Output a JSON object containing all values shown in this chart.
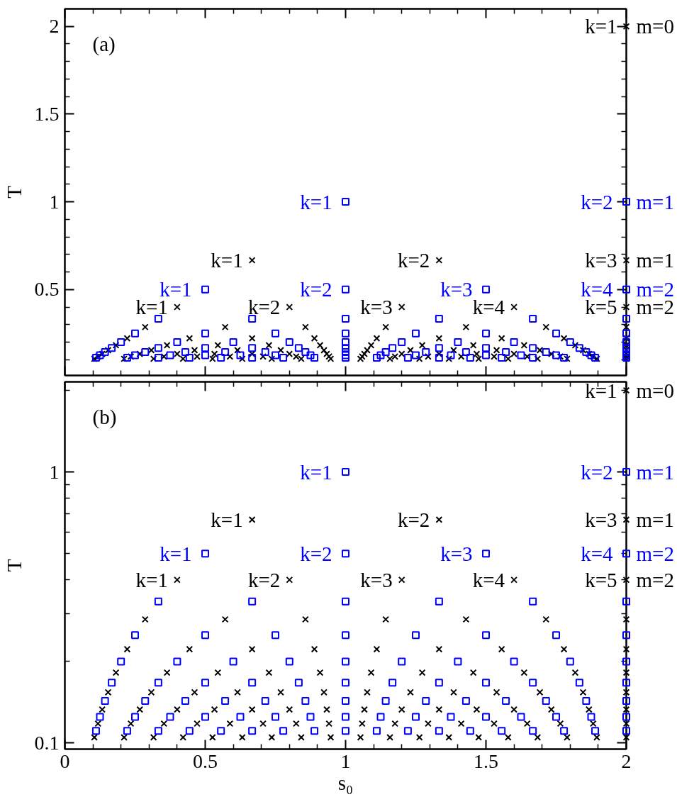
{
  "chart_data": [
    {
      "type": "scatter",
      "title": "(a)",
      "ylabel": "T",
      "xlim": [
        0,
        2
      ],
      "ylim": [
        0.01,
        2.1
      ],
      "tick_labels": "y",
      "xticks": [
        0,
        {
          "value": 0.1,
          "label": null
        },
        {
          "value": 0.2,
          "label": null
        },
        {
          "value": 0.3,
          "label": null
        },
        {
          "value": 0.4,
          "label": null
        },
        0.5,
        {
          "value": 0.6,
          "label": null
        },
        {
          "value": 0.7,
          "label": null
        },
        {
          "value": 0.8,
          "label": null
        },
        {
          "value": 0.9,
          "label": null
        },
        1,
        {
          "value": 1.1,
          "label": null
        },
        {
          "value": 1.2,
          "label": null
        },
        {
          "value": 1.3,
          "label": null
        },
        {
          "value": 1.4,
          "label": null
        },
        1.5,
        {
          "value": 1.6,
          "label": null
        },
        {
          "value": 1.7,
          "label": null
        },
        {
          "value": 1.8,
          "label": null
        },
        {
          "value": 1.9,
          "label": null
        },
        2
      ],
      "yticks": [
        {
          "value": 0.1,
          "label": null
        },
        {
          "value": 0.2,
          "label": null
        },
        {
          "value": 0.3,
          "label": null
        },
        {
          "value": 0.4,
          "label": null
        },
        0.5,
        {
          "value": 0.6,
          "label": null
        },
        {
          "value": 0.7,
          "label": null
        },
        {
          "value": 0.8,
          "label": null
        },
        {
          "value": 0.9,
          "label": null
        },
        1,
        {
          "value": 1.1,
          "label": null
        },
        {
          "value": 1.2,
          "label": null
        },
        {
          "value": 1.3,
          "label": null
        },
        {
          "value": 1.4,
          "label": null
        },
        1.5,
        {
          "value": 1.6,
          "label": null
        },
        {
          "value": 1.7,
          "label": null
        },
        {
          "value": 1.8,
          "label": null
        },
        {
          "value": 1.9,
          "label": null
        },
        2
      ],
      "series": [
        {
          "color": "#000000",
          "marker": "cross",
          "x": [
            2,
            0.667,
            1.333,
            2,
            0.4,
            0.8,
            1.2,
            1.6,
            2,
            0.286,
            0.571,
            0.857,
            1.143,
            1.429,
            1.714,
            2,
            0.222,
            0.444,
            0.667,
            0.889,
            1.111,
            1.333,
            1.556,
            1.778,
            2,
            0.182,
            0.364,
            0.545,
            0.727,
            0.909,
            1.091,
            1.273,
            1.455,
            1.636,
            1.818,
            2,
            0.154,
            0.308,
            0.462,
            0.615,
            0.769,
            0.923,
            1.077,
            1.231,
            1.385,
            1.538,
            1.692,
            1.846,
            2,
            0.133,
            0.267,
            0.4,
            0.533,
            0.667,
            0.8,
            0.933,
            1.067,
            1.2,
            1.333,
            1.467,
            1.6,
            1.733,
            1.867,
            2,
            0.118,
            0.235,
            0.353,
            0.471,
            0.588,
            0.706,
            0.824,
            0.941,
            1.059,
            1.176,
            1.294,
            1.412,
            1.529,
            1.647,
            1.765,
            1.882,
            2,
            0.105,
            0.211,
            0.316,
            0.421,
            0.526,
            0.632,
            0.737,
            0.842,
            0.947,
            1.053,
            1.158,
            1.263,
            1.368,
            1.474,
            1.579,
            1.684,
            1.789,
            1.895,
            2
          ],
          "values": [
            2,
            0.667,
            0.667,
            0.667,
            0.4,
            0.4,
            0.4,
            0.4,
            0.4,
            0.286,
            0.286,
            0.286,
            0.286,
            0.286,
            0.286,
            0.286,
            0.222,
            0.222,
            0.222,
            0.222,
            0.222,
            0.222,
            0.222,
            0.222,
            0.222,
            0.182,
            0.182,
            0.182,
            0.182,
            0.182,
            0.182,
            0.182,
            0.182,
            0.182,
            0.182,
            0.182,
            0.154,
            0.154,
            0.154,
            0.154,
            0.154,
            0.154,
            0.154,
            0.154,
            0.154,
            0.154,
            0.154,
            0.154,
            0.154,
            0.133,
            0.133,
            0.133,
            0.133,
            0.133,
            0.133,
            0.133,
            0.133,
            0.133,
            0.133,
            0.133,
            0.133,
            0.133,
            0.133,
            0.133,
            0.118,
            0.118,
            0.118,
            0.118,
            0.118,
            0.118,
            0.118,
            0.118,
            0.118,
            0.118,
            0.118,
            0.118,
            0.118,
            0.118,
            0.118,
            0.118,
            0.118,
            0.105,
            0.105,
            0.105,
            0.105,
            0.105,
            0.105,
            0.105,
            0.105,
            0.105,
            0.105,
            0.105,
            0.105,
            0.105,
            0.105,
            0.105,
            0.105,
            0.105,
            0.105,
            0.105
          ]
        },
        {
          "color": "#0000ff",
          "marker": "square",
          "x": [
            1,
            2,
            0.5,
            1,
            1.5,
            2,
            0.333,
            0.667,
            1,
            1.333,
            1.667,
            2,
            0.25,
            0.5,
            0.75,
            1,
            1.25,
            1.5,
            1.75,
            2,
            0.2,
            0.4,
            0.6,
            0.8,
            1,
            1.2,
            1.4,
            1.6,
            1.8,
            2,
            0.167,
            0.333,
            0.5,
            0.667,
            0.833,
            1,
            1.167,
            1.333,
            1.5,
            1.667,
            1.833,
            2,
            0.143,
            0.286,
            0.429,
            0.571,
            0.714,
            0.857,
            1,
            1.143,
            1.286,
            1.429,
            1.571,
            1.714,
            1.857,
            2,
            0.125,
            0.25,
            0.375,
            0.5,
            0.625,
            0.75,
            0.875,
            1,
            1.125,
            1.25,
            1.375,
            1.5,
            1.625,
            1.75,
            1.875,
            2,
            0.111,
            0.222,
            0.333,
            0.444,
            0.556,
            0.667,
            0.778,
            0.889,
            1,
            1.111,
            1.222,
            1.333,
            1.444,
            1.556,
            1.667,
            1.778,
            1.889,
            2
          ],
          "values": [
            1,
            1,
            0.5,
            0.5,
            0.5,
            0.5,
            0.333,
            0.333,
            0.333,
            0.333,
            0.333,
            0.333,
            0.25,
            0.25,
            0.25,
            0.25,
            0.25,
            0.25,
            0.25,
            0.25,
            0.2,
            0.2,
            0.2,
            0.2,
            0.2,
            0.2,
            0.2,
            0.2,
            0.2,
            0.2,
            0.167,
            0.167,
            0.167,
            0.167,
            0.167,
            0.167,
            0.167,
            0.167,
            0.167,
            0.167,
            0.167,
            0.167,
            0.143,
            0.143,
            0.143,
            0.143,
            0.143,
            0.143,
            0.143,
            0.143,
            0.143,
            0.143,
            0.143,
            0.143,
            0.143,
            0.143,
            0.125,
            0.125,
            0.125,
            0.125,
            0.125,
            0.125,
            0.125,
            0.125,
            0.125,
            0.125,
            0.125,
            0.125,
            0.125,
            0.125,
            0.125,
            0.125,
            0.111,
            0.111,
            0.111,
            0.111,
            0.111,
            0.111,
            0.111,
            0.111,
            0.111,
            0.111,
            0.111,
            0.111,
            0.111,
            0.111,
            0.111,
            0.111,
            0.111,
            0.111
          ]
        }
      ],
      "annotations": [
        {
          "text": "k=1",
          "x": 2,
          "y": 2
        },
        {
          "text": "m=0",
          "x": 2,
          "y": 2
        },
        {
          "text": "k=1",
          "x": 1,
          "y": 1
        },
        {
          "text": "k=2",
          "x": 2,
          "y": 1
        },
        {
          "text": "m=1",
          "x": 2,
          "y": 1
        },
        {
          "text": "k=1",
          "x": 0.667,
          "y": 0.667
        },
        {
          "text": "k=2",
          "x": 1.333,
          "y": 0.667
        },
        {
          "text": "k=3",
          "x": 2,
          "y": 0.667
        },
        {
          "text": "m=1",
          "x": 2,
          "y": 0.667
        },
        {
          "text": "k=1",
          "x": 0.5,
          "y": 0.5
        },
        {
          "text": "k=2",
          "x": 1,
          "y": 0.5
        },
        {
          "text": "k=3",
          "x": 1.5,
          "y": 0.5
        },
        {
          "text": "k=4",
          "x": 2,
          "y": 0.5
        },
        {
          "text": "m=2",
          "x": 2,
          "y": 0.5
        },
        {
          "text": "k=1",
          "x": 0.4,
          "y": 0.4
        },
        {
          "text": "k=2",
          "x": 0.8,
          "y": 0.4
        },
        {
          "text": "k=3",
          "x": 1.2,
          "y": 0.4
        },
        {
          "text": "k=4",
          "x": 1.6,
          "y": 0.4
        },
        {
          "text": "k=5",
          "x": 2,
          "y": 0.4
        },
        {
          "text": "m=2",
          "x": 2,
          "y": 0.4
        }
      ]
    },
    {
      "type": "scatter",
      "title": "(b)",
      "xlabel": "s₀",
      "ylabel": "T",
      "log": true,
      "xlim": [
        0,
        2
      ],
      "ylim": [
        0.095,
        2.15
      ],
      "xticks": [
        0,
        {
          "value": 0.1,
          "label": null
        },
        {
          "value": 0.2,
          "label": null
        },
        {
          "value": 0.3,
          "label": null
        },
        {
          "value": 0.4,
          "label": null
        },
        0.5,
        {
          "value": 0.6,
          "label": null
        },
        {
          "value": 0.7,
          "label": null
        },
        {
          "value": 0.8,
          "label": null
        },
        {
          "value": 0.9,
          "label": null
        },
        1,
        {
          "value": 1.1,
          "label": null
        },
        {
          "value": 1.2,
          "label": null
        },
        {
          "value": 1.3,
          "label": null
        },
        {
          "value": 1.4,
          "label": null
        },
        1.5,
        {
          "value": 1.6,
          "label": null
        },
        {
          "value": 1.7,
          "label": null
        },
        {
          "value": 1.8,
          "label": null
        },
        {
          "value": 1.9,
          "label": null
        },
        2
      ],
      "yticks": [
        0.1,
        {
          "value": 0.2,
          "label": null
        },
        {
          "value": 0.3,
          "label": null
        },
        {
          "value": 0.4,
          "label": null
        },
        {
          "value": 0.5,
          "label": null
        },
        {
          "value": 0.6,
          "label": null
        },
        {
          "value": 0.7,
          "label": null
        },
        {
          "value": 0.8,
          "label": null
        },
        {
          "value": 0.9,
          "label": null
        },
        1,
        {
          "value": 2,
          "label": null
        }
      ],
      "series": [
        {
          "color": "#000000",
          "marker": "cross",
          "x": [
            2,
            0.667,
            1.333,
            2,
            0.4,
            0.8,
            1.2,
            1.6,
            2,
            0.286,
            0.571,
            0.857,
            1.143,
            1.429,
            1.714,
            2,
            0.222,
            0.444,
            0.667,
            0.889,
            1.111,
            1.333,
            1.556,
            1.778,
            2,
            0.182,
            0.364,
            0.545,
            0.727,
            0.909,
            1.091,
            1.273,
            1.455,
            1.636,
            1.818,
            2,
            0.154,
            0.308,
            0.462,
            0.615,
            0.769,
            0.923,
            1.077,
            1.231,
            1.385,
            1.538,
            1.692,
            1.846,
            2,
            0.133,
            0.267,
            0.4,
            0.533,
            0.667,
            0.8,
            0.933,
            1.067,
            1.2,
            1.333,
            1.467,
            1.6,
            1.733,
            1.867,
            2,
            0.118,
            0.235,
            0.353,
            0.471,
            0.588,
            0.706,
            0.824,
            0.941,
            1.059,
            1.176,
            1.294,
            1.412,
            1.529,
            1.647,
            1.765,
            1.882,
            2,
            0.105,
            0.211,
            0.316,
            0.421,
            0.526,
            0.632,
            0.737,
            0.842,
            0.947,
            1.053,
            1.158,
            1.263,
            1.368,
            1.474,
            1.579,
            1.684,
            1.789,
            1.895,
            2
          ],
          "values": [
            2,
            0.667,
            0.667,
            0.667,
            0.4,
            0.4,
            0.4,
            0.4,
            0.4,
            0.286,
            0.286,
            0.286,
            0.286,
            0.286,
            0.286,
            0.286,
            0.222,
            0.222,
            0.222,
            0.222,
            0.222,
            0.222,
            0.222,
            0.222,
            0.222,
            0.182,
            0.182,
            0.182,
            0.182,
            0.182,
            0.182,
            0.182,
            0.182,
            0.182,
            0.182,
            0.182,
            0.154,
            0.154,
            0.154,
            0.154,
            0.154,
            0.154,
            0.154,
            0.154,
            0.154,
            0.154,
            0.154,
            0.154,
            0.154,
            0.133,
            0.133,
            0.133,
            0.133,
            0.133,
            0.133,
            0.133,
            0.133,
            0.133,
            0.133,
            0.133,
            0.133,
            0.133,
            0.133,
            0.133,
            0.118,
            0.118,
            0.118,
            0.118,
            0.118,
            0.118,
            0.118,
            0.118,
            0.118,
            0.118,
            0.118,
            0.118,
            0.118,
            0.118,
            0.118,
            0.118,
            0.118,
            0.105,
            0.105,
            0.105,
            0.105,
            0.105,
            0.105,
            0.105,
            0.105,
            0.105,
            0.105,
            0.105,
            0.105,
            0.105,
            0.105,
            0.105,
            0.105,
            0.105,
            0.105,
            0.105
          ]
        },
        {
          "color": "#0000ff",
          "marker": "square",
          "x": [
            1,
            2,
            0.5,
            1,
            1.5,
            2,
            0.333,
            0.667,
            1,
            1.333,
            1.667,
            2,
            0.25,
            0.5,
            0.75,
            1,
            1.25,
            1.5,
            1.75,
            2,
            0.2,
            0.4,
            0.6,
            0.8,
            1,
            1.2,
            1.4,
            1.6,
            1.8,
            2,
            0.167,
            0.333,
            0.5,
            0.667,
            0.833,
            1,
            1.167,
            1.333,
            1.5,
            1.667,
            1.833,
            2,
            0.143,
            0.286,
            0.429,
            0.571,
            0.714,
            0.857,
            1,
            1.143,
            1.286,
            1.429,
            1.571,
            1.714,
            1.857,
            2,
            0.125,
            0.25,
            0.375,
            0.5,
            0.625,
            0.75,
            0.875,
            1,
            1.125,
            1.25,
            1.375,
            1.5,
            1.625,
            1.75,
            1.875,
            2,
            0.111,
            0.222,
            0.333,
            0.444,
            0.556,
            0.667,
            0.778,
            0.889,
            1,
            1.111,
            1.222,
            1.333,
            1.444,
            1.556,
            1.667,
            1.778,
            1.889,
            2
          ],
          "values": [
            1,
            1,
            0.5,
            0.5,
            0.5,
            0.5,
            0.333,
            0.333,
            0.333,
            0.333,
            0.333,
            0.333,
            0.25,
            0.25,
            0.25,
            0.25,
            0.25,
            0.25,
            0.25,
            0.25,
            0.2,
            0.2,
            0.2,
            0.2,
            0.2,
            0.2,
            0.2,
            0.2,
            0.2,
            0.2,
            0.167,
            0.167,
            0.167,
            0.167,
            0.167,
            0.167,
            0.167,
            0.167,
            0.167,
            0.167,
            0.167,
            0.167,
            0.143,
            0.143,
            0.143,
            0.143,
            0.143,
            0.143,
            0.143,
            0.143,
            0.143,
            0.143,
            0.143,
            0.143,
            0.143,
            0.143,
            0.125,
            0.125,
            0.125,
            0.125,
            0.125,
            0.125,
            0.125,
            0.125,
            0.125,
            0.125,
            0.125,
            0.125,
            0.125,
            0.125,
            0.125,
            0.125,
            0.111,
            0.111,
            0.111,
            0.111,
            0.111,
            0.111,
            0.111,
            0.111,
            0.111,
            0.111,
            0.111,
            0.111,
            0.111,
            0.111,
            0.111,
            0.111,
            0.111,
            0.111
          ]
        }
      ],
      "annotations": [
        {
          "text": "k=1",
          "x": 2,
          "y": 2
        },
        {
          "text": "m=0",
          "x": 2,
          "y": 2
        },
        {
          "text": "k=1",
          "x": 1,
          "y": 1
        },
        {
          "text": "k=2",
          "x": 2,
          "y": 1
        },
        {
          "text": "m=1",
          "x": 2,
          "y": 1
        },
        {
          "text": "k=1",
          "x": 0.667,
          "y": 0.667
        },
        {
          "text": "k=2",
          "x": 1.333,
          "y": 0.667
        },
        {
          "text": "k=3",
          "x": 2,
          "y": 0.667
        },
        {
          "text": "m=1",
          "x": 2,
          "y": 0.667
        },
        {
          "text": "k=1",
          "x": 0.5,
          "y": 0.5
        },
        {
          "text": "k=2",
          "x": 1,
          "y": 0.5
        },
        {
          "text": "k=3",
          "x": 1.5,
          "y": 0.5
        },
        {
          "text": "k=4",
          "x": 2,
          "y": 0.5
        },
        {
          "text": "m=2",
          "x": 2,
          "y": 0.5
        },
        {
          "text": "k=1",
          "x": 0.4,
          "y": 0.4
        },
        {
          "text": "k=2",
          "x": 0.8,
          "y": 0.4
        },
        {
          "text": "k=3",
          "x": 1.2,
          "y": 0.4
        },
        {
          "text": "k=4",
          "x": 1.6,
          "y": 0.4
        },
        {
          "text": "k=5",
          "x": 2,
          "y": 0.4
        },
        {
          "text": "m=2",
          "x": 2,
          "y": 0.4
        }
      ]
    }
  ]
}
